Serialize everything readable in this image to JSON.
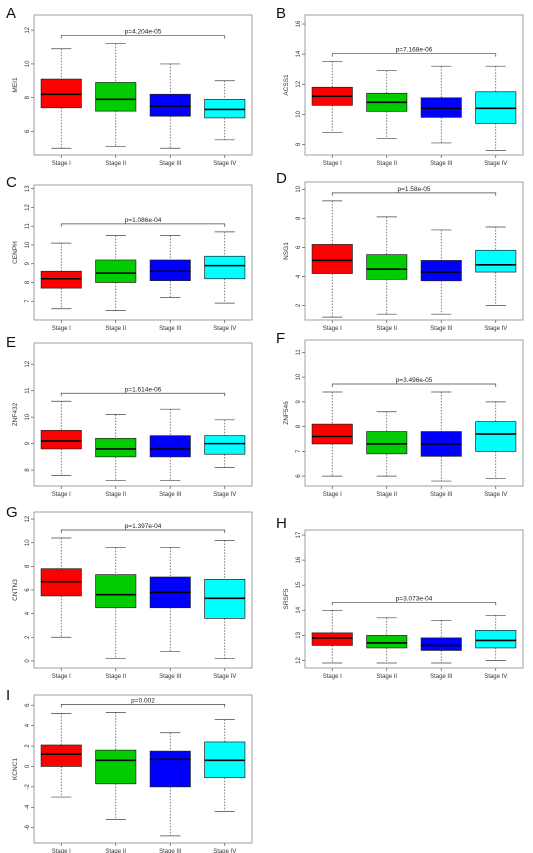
{
  "chart_data": [
    {
      "panel": "A",
      "type": "box",
      "ylabel": "MEI1",
      "pvalue": "p=4.204e-05",
      "categories": [
        "Stage I",
        "Stage II",
        "Stage III",
        "Stage IV"
      ],
      "ylim": [
        4.6,
        12.9
      ],
      "yticks": [
        6,
        8,
        10,
        12
      ],
      "boxes": [
        {
          "min": 5.0,
          "q1": 7.4,
          "median": 8.2,
          "q3": 9.1,
          "max": 10.9
        },
        {
          "min": 5.1,
          "q1": 7.2,
          "median": 7.9,
          "q3": 8.9,
          "max": 11.2
        },
        {
          "min": 5.0,
          "q1": 6.9,
          "median": 7.5,
          "q3": 8.2,
          "max": 10.0
        },
        {
          "min": 5.5,
          "q1": 6.8,
          "median": 7.3,
          "q3": 7.9,
          "max": 9.0
        }
      ],
      "colors": [
        "#ff0000",
        "#00cc00",
        "#0000ff",
        "#00ffff"
      ]
    },
    {
      "panel": "B",
      "type": "box",
      "ylabel": "ACSS1",
      "pvalue": "p=7.168e-06",
      "categories": [
        "Stage I",
        "Stage II",
        "Stage III",
        "Stage IV"
      ],
      "ylim": [
        7.3,
        16.6
      ],
      "yticks": [
        8,
        10,
        12,
        14,
        16
      ],
      "boxes": [
        {
          "min": 8.8,
          "q1": 10.6,
          "median": 11.2,
          "q3": 11.8,
          "max": 13.5
        },
        {
          "min": 8.4,
          "q1": 10.2,
          "median": 10.8,
          "q3": 11.4,
          "max": 12.9
        },
        {
          "min": 8.1,
          "q1": 9.8,
          "median": 10.4,
          "q3": 11.1,
          "max": 13.2
        },
        {
          "min": 7.6,
          "q1": 9.4,
          "median": 10.4,
          "q3": 11.5,
          "max": 13.2
        }
      ],
      "colors": [
        "#ff0000",
        "#00cc00",
        "#0000ff",
        "#00ffff"
      ]
    },
    {
      "panel": "C",
      "type": "box",
      "ylabel": "CENPH",
      "pvalue": "p=1.086e-04",
      "categories": [
        "Stage I",
        "Stage II",
        "Stage III",
        "Stage IV"
      ],
      "ylim": [
        6.0,
        13.2
      ],
      "yticks": [
        7,
        8,
        9,
        10,
        11,
        12,
        13
      ],
      "boxes": [
        {
          "min": 6.6,
          "q1": 7.7,
          "median": 8.2,
          "q3": 8.6,
          "max": 10.1
        },
        {
          "min": 6.5,
          "q1": 8.0,
          "median": 8.5,
          "q3": 9.2,
          "max": 10.5
        },
        {
          "min": 7.2,
          "q1": 8.1,
          "median": 8.6,
          "q3": 9.2,
          "max": 10.5
        },
        {
          "min": 6.9,
          "q1": 8.2,
          "median": 8.9,
          "q3": 9.4,
          "max": 10.7
        }
      ],
      "colors": [
        "#ff0000",
        "#00cc00",
        "#0000ff",
        "#00ffff"
      ]
    },
    {
      "panel": "D",
      "type": "box",
      "ylabel": "NSG1",
      "pvalue": "p=1.58e-05",
      "categories": [
        "Stage I",
        "Stage II",
        "Stage III",
        "Stage IV"
      ],
      "ylim": [
        1.0,
        10.5
      ],
      "yticks": [
        2,
        4,
        6,
        8,
        10
      ],
      "boxes": [
        {
          "min": 1.2,
          "q1": 4.2,
          "median": 5.1,
          "q3": 6.2,
          "max": 9.2
        },
        {
          "min": 1.4,
          "q1": 3.8,
          "median": 4.5,
          "q3": 5.5,
          "max": 8.1
        },
        {
          "min": 1.4,
          "q1": 3.7,
          "median": 4.3,
          "q3": 5.1,
          "max": 7.2
        },
        {
          "min": 2.0,
          "q1": 4.3,
          "median": 4.8,
          "q3": 5.8,
          "max": 7.4
        }
      ],
      "colors": [
        "#ff0000",
        "#00cc00",
        "#0000ff",
        "#00ffff"
      ]
    },
    {
      "panel": "E",
      "type": "box",
      "ylabel": "ZNF432",
      "pvalue": "p=1.614e-06",
      "categories": [
        "Stage I",
        "Stage II",
        "Stage III",
        "Stage IV"
      ],
      "ylim": [
        7.4,
        12.8
      ],
      "yticks": [
        8,
        9,
        10,
        11,
        12
      ],
      "boxes": [
        {
          "min": 7.8,
          "q1": 8.8,
          "median": 9.1,
          "q3": 9.5,
          "max": 10.6
        },
        {
          "min": 7.6,
          "q1": 8.5,
          "median": 8.8,
          "q3": 9.2,
          "max": 10.1
        },
        {
          "min": 7.6,
          "q1": 8.5,
          "median": 8.8,
          "q3": 9.3,
          "max": 10.3
        },
        {
          "min": 8.1,
          "q1": 8.6,
          "median": 9.0,
          "q3": 9.3,
          "max": 9.9
        }
      ],
      "colors": [
        "#ff0000",
        "#00cc00",
        "#0000ff",
        "#00ffff"
      ]
    },
    {
      "panel": "F",
      "type": "box",
      "ylabel": "ZNF546",
      "pvalue": "p=3.496e-05",
      "categories": [
        "Stage I",
        "Stage II",
        "Stage III",
        "Stage IV"
      ],
      "ylim": [
        5.6,
        11.5
      ],
      "yticks": [
        6,
        7,
        8,
        9,
        10,
        11
      ],
      "boxes": [
        {
          "min": 6.0,
          "q1": 7.3,
          "median": 7.6,
          "q3": 8.1,
          "max": 9.4
        },
        {
          "min": 6.0,
          "q1": 6.9,
          "median": 7.3,
          "q3": 7.8,
          "max": 8.6
        },
        {
          "min": 5.8,
          "q1": 6.8,
          "median": 7.3,
          "q3": 7.8,
          "max": 9.4
        },
        {
          "min": 5.9,
          "q1": 7.0,
          "median": 7.7,
          "q3": 8.2,
          "max": 9.0
        }
      ],
      "colors": [
        "#ff0000",
        "#00cc00",
        "#0000ff",
        "#00ffff"
      ]
    },
    {
      "panel": "G",
      "type": "box",
      "ylabel": "CNTN3",
      "pvalue": "p=1.397e-04",
      "categories": [
        "Stage I",
        "Stage II",
        "Stage III",
        "Stage IV"
      ],
      "ylim": [
        -0.6,
        12.6
      ],
      "yticks": [
        0,
        2,
        4,
        6,
        8,
        10,
        12
      ],
      "boxes": [
        {
          "min": 2.0,
          "q1": 5.5,
          "median": 6.7,
          "q3": 7.8,
          "max": 10.4
        },
        {
          "min": 0.2,
          "q1": 4.5,
          "median": 5.6,
          "q3": 7.3,
          "max": 9.6
        },
        {
          "min": 0.8,
          "q1": 4.5,
          "median": 5.8,
          "q3": 7.1,
          "max": 9.6
        },
        {
          "min": 0.2,
          "q1": 3.6,
          "median": 5.3,
          "q3": 6.9,
          "max": 10.2
        }
      ],
      "colors": [
        "#ff0000",
        "#00cc00",
        "#0000ff",
        "#00ffff"
      ]
    },
    {
      "panel": "H",
      "type": "box",
      "ylabel": "SRSF5",
      "pvalue": "p=3.073e-04",
      "categories": [
        "Stage I",
        "Stage II",
        "Stage III",
        "Stage IV"
      ],
      "ylim": [
        11.7,
        17.2
      ],
      "yticks": [
        12,
        13,
        14,
        15,
        16,
        17
      ],
      "boxes": [
        {
          "min": 11.9,
          "q1": 12.6,
          "median": 12.9,
          "q3": 13.1,
          "max": 14.0
        },
        {
          "min": 11.9,
          "q1": 12.5,
          "median": 12.7,
          "q3": 13.0,
          "max": 13.7
        },
        {
          "min": 11.9,
          "q1": 12.4,
          "median": 12.6,
          "q3": 12.9,
          "max": 13.6
        },
        {
          "min": 12.0,
          "q1": 12.5,
          "median": 12.8,
          "q3": 13.2,
          "max": 13.8
        }
      ],
      "colors": [
        "#ff0000",
        "#00cc00",
        "#0000ff",
        "#00ffff"
      ]
    },
    {
      "panel": "I",
      "type": "box",
      "ylabel": "KCNC1",
      "pvalue": "p=0.002",
      "categories": [
        "Stage I",
        "Stage II",
        "Stage III",
        "Stage IV"
      ],
      "ylim": [
        -7.5,
        7.0
      ],
      "yticks": [
        -6,
        -4,
        -2,
        0,
        2,
        4,
        6
      ],
      "boxes": [
        {
          "min": -3.0,
          "q1": 0.0,
          "median": 1.2,
          "q3": 2.1,
          "max": 5.2
        },
        {
          "min": -5.2,
          "q1": -1.7,
          "median": 0.6,
          "q3": 1.6,
          "max": 5.3
        },
        {
          "min": -6.8,
          "q1": -2.0,
          "median": 0.7,
          "q3": 1.5,
          "max": 3.3
        },
        {
          "min": -4.4,
          "q1": -1.1,
          "median": 0.6,
          "q3": 2.4,
          "max": 4.6
        }
      ],
      "colors": [
        "#ff0000",
        "#00cc00",
        "#0000ff",
        "#00ffff"
      ]
    }
  ]
}
